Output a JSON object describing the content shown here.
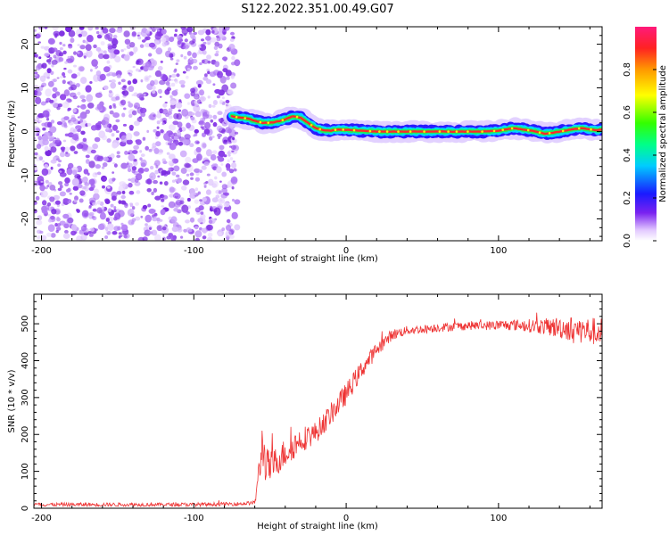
{
  "title": "S122.2022.351.00.49.G07",
  "chart_data": [
    {
      "type": "heatmap",
      "name": "spectrogram",
      "xlabel": "Height of straight line (km)",
      "ylabel": "Frequency (Hz)",
      "xlim": [
        -205,
        168
      ],
      "ylim": [
        -25,
        24
      ],
      "xticks": [
        -200,
        -100,
        0,
        100
      ],
      "yticks": [
        -20,
        -10,
        0,
        10,
        20
      ],
      "noise_region_x": [
        -205,
        -75
      ],
      "ridge": {
        "x": [
          -75,
          -70,
          -65,
          -60,
          -55,
          -50,
          -45,
          -40,
          -35,
          -30,
          -25,
          -20,
          -15,
          -10,
          -5,
          0,
          10,
          20,
          30,
          40,
          50,
          60,
          70,
          80,
          90,
          100,
          105,
          110,
          115,
          120,
          125,
          130,
          135,
          140,
          145,
          150,
          155,
          160,
          165,
          168
        ],
        "freq": [
          3.5,
          3.2,
          3.0,
          2.5,
          2.0,
          2.0,
          2.3,
          2.8,
          3.5,
          3.2,
          2.0,
          0.8,
          0.3,
          0.2,
          0.5,
          0.4,
          0.2,
          0.0,
          0.0,
          0.0,
          0.0,
          0.0,
          0.0,
          0.0,
          0.0,
          0.2,
          0.5,
          0.8,
          0.5,
          0.3,
          0.0,
          -0.5,
          -0.3,
          0.0,
          0.3,
          0.6,
          0.8,
          0.5,
          0.3,
          0.5
        ]
      },
      "colorbar": {
        "label": "Normalized spectral amplitude",
        "range": [
          0,
          1
        ],
        "ticks": [
          0.0,
          0.2,
          0.4,
          0.6,
          0.8
        ],
        "tick_labels": [
          "0.0",
          "0.2",
          "0.4",
          "0.6",
          "0.8"
        ]
      }
    },
    {
      "type": "line",
      "name": "snr",
      "xlabel": "Height of straight line (km)",
      "ylabel": "SNR (10 * v/v)",
      "xlim": [
        -205,
        168
      ],
      "ylim": [
        0,
        580
      ],
      "xticks": [
        -200,
        -100,
        0,
        100
      ],
      "yticks": [
        0,
        100,
        200,
        300,
        400,
        500
      ],
      "color": "#ee3333",
      "series": [
        {
          "name": "SNR",
          "x": [
            -205,
            -150,
            -100,
            -70,
            -60,
            -57,
            -55,
            -53,
            -50,
            -45,
            -40,
            -30,
            -20,
            -10,
            0,
            10,
            20,
            30,
            40,
            50,
            60,
            70,
            80,
            90,
            100,
            110,
            120,
            130,
            140,
            150,
            160,
            168
          ],
          "y": [
            10,
            10,
            10,
            12,
            15,
            100,
            180,
            120,
            110,
            130,
            150,
            185,
            205,
            255,
            310,
            375,
            430,
            470,
            482,
            485,
            490,
            492,
            495,
            495,
            496,
            497,
            495,
            492,
            490,
            485,
            480,
            478
          ],
          "noise": [
            5,
            5,
            5,
            5,
            5,
            45,
            60,
            50,
            45,
            40,
            40,
            35,
            30,
            30,
            30,
            25,
            20,
            15,
            12,
            12,
            12,
            12,
            12,
            12,
            14,
            15,
            18,
            22,
            30,
            35,
            38,
            38
          ]
        }
      ]
    }
  ]
}
